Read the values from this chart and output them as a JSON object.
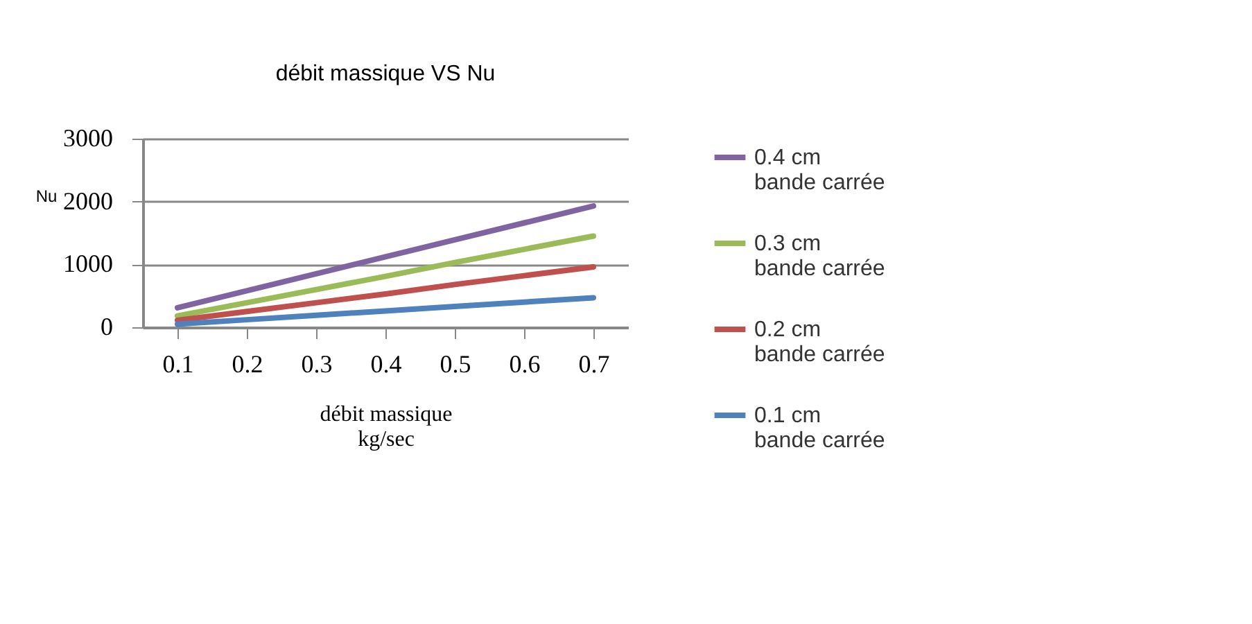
{
  "chart_data": {
    "type": "line",
    "title": "débit massique  VS  Nu",
    "xlabel": "débit massique\nkg/sec",
    "ylabel": "Nu",
    "categories": [
      "0.1",
      "0.2",
      "0.3",
      "0.4",
      "0.5",
      "0.6",
      "0.7"
    ],
    "series": [
      {
        "name": "0.4 cm bande carrée",
        "color": "#8064a2",
        "values": [
          310,
          580,
          850,
          1120,
          1390,
          1660,
          1930
        ]
      },
      {
        "name": "0.3 cm bande carrée",
        "color": "#9bbb59",
        "values": [
          180,
          390,
          600,
          810,
          1030,
          1240,
          1450
        ]
      },
      {
        "name": "0.2 cm bande carrée",
        "color": "#c0504d",
        "values": [
          110,
          250,
          390,
          530,
          680,
          820,
          960
        ]
      },
      {
        "name": "0.1 cm bande carrée",
        "color": "#4f81bd",
        "values": [
          50,
          120,
          190,
          260,
          330,
          400,
          470
        ]
      }
    ],
    "ylim": [
      0,
      3000
    ],
    "yticks": [
      0,
      1000,
      2000,
      3000
    ],
    "grid": "y",
    "legend": "right",
    "marker": "none",
    "line_style": "solid"
  }
}
